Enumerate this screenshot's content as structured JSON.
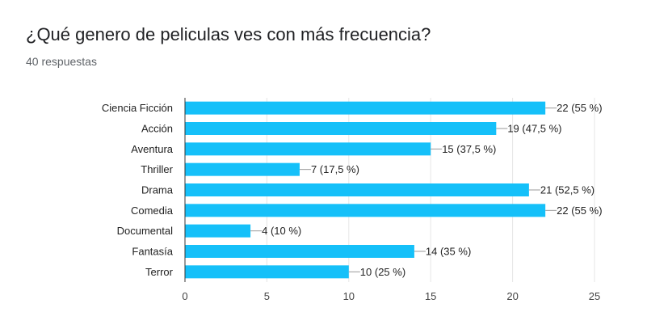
{
  "question": {
    "title": "¿Qué genero de peliculas ves con más frecuencia?",
    "responses": "40 respuestas"
  },
  "colors": {
    "bar": "#15c0f9",
    "grid": "#e6e6e6",
    "axis": "#333333",
    "leader": "#999999"
  },
  "chart_data": {
    "type": "bar",
    "orientation": "horizontal",
    "categories": [
      "Ciencia Ficción",
      "Acción",
      "Aventura",
      "Thriller",
      "Drama",
      "Comedia",
      "Documental",
      "Fantasía",
      "Terror"
    ],
    "values": [
      22,
      19,
      15,
      7,
      21,
      22,
      4,
      14,
      10
    ],
    "value_labels": [
      "22 (55 %)",
      "19 (47,5 %)",
      "15 (37,5 %)",
      "7 (17,5 %)",
      "21 (52,5 %)",
      "22 (55 %)",
      "4 (10 %)",
      "14 (35 %)",
      "10 (25 %)"
    ],
    "xlim": [
      0,
      25
    ],
    "xticks": [
      0,
      5,
      10,
      15,
      20,
      25
    ],
    "grid": true,
    "legend": false
  }
}
